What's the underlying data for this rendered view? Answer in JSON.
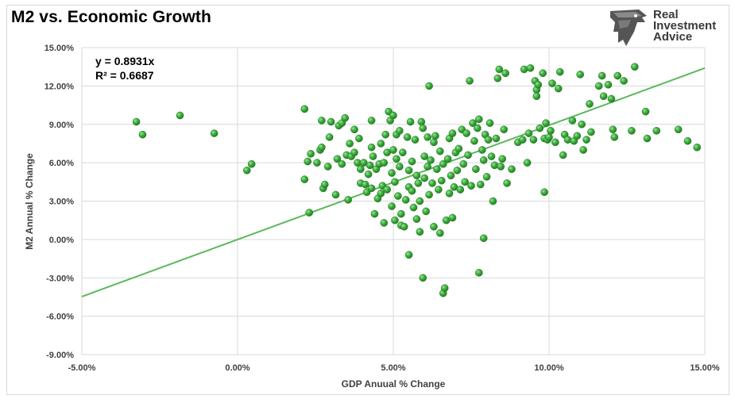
{
  "page_title": "M2 vs. Economic Growth",
  "logo": {
    "icon": "eagle-head-icon",
    "lines": [
      "Real",
      "Investment",
      "Advice"
    ]
  },
  "chart_data": {
    "type": "scatter",
    "title": "M2 vs. Economic Growth",
    "xlabel": "GDP Anuual % Change",
    "ylabel": "M2 Annual % Change",
    "xlim": [
      -5,
      15
    ],
    "ylim": [
      -9,
      15
    ],
    "xticks": [
      -5,
      0,
      5,
      10,
      15
    ],
    "yticks": [
      -9,
      -6,
      -3,
      0,
      3,
      6,
      9,
      12,
      15
    ],
    "xtick_labels": [
      "-5.00%",
      "0.00%",
      "5.00%",
      "10.00%",
      "15.00%"
    ],
    "ytick_labels": [
      "-9.00%",
      "-6.00%",
      "-3.00%",
      "0.00%",
      "3.00%",
      "6.00%",
      "9.00%",
      "12.00%",
      "15.00%"
    ],
    "grid": true,
    "trendline": {
      "slope": 0.8931,
      "intercept": 0,
      "equation": "y = 0.8931x",
      "r2": "R² = 0.6687",
      "color": "#5cb85c"
    },
    "marker_color": "#3aa53a",
    "points": [
      [
        -3.25,
        9.2
      ],
      [
        -3.05,
        8.2
      ],
      [
        -1.85,
        9.7
      ],
      [
        -0.75,
        8.3
      ],
      [
        0.3,
        5.4
      ],
      [
        0.45,
        5.9
      ],
      [
        2.15,
        10.2
      ],
      [
        2.15,
        4.7
      ],
      [
        2.25,
        6.1
      ],
      [
        2.3,
        2.1
      ],
      [
        2.35,
        6.7
      ],
      [
        2.55,
        6.0
      ],
      [
        2.65,
        7.0
      ],
      [
        2.7,
        9.3
      ],
      [
        2.7,
        7.2
      ],
      [
        2.75,
        4.0
      ],
      [
        2.8,
        4.3
      ],
      [
        2.9,
        5.7
      ],
      [
        2.95,
        8.0
      ],
      [
        3.0,
        9.2
      ],
      [
        3.15,
        3.5
      ],
      [
        3.2,
        6.3
      ],
      [
        3.25,
        8.9
      ],
      [
        3.35,
        9.1
      ],
      [
        3.35,
        5.9
      ],
      [
        3.45,
        9.5
      ],
      [
        3.5,
        6.6
      ],
      [
        3.55,
        3.1
      ],
      [
        3.6,
        7.5
      ],
      [
        3.65,
        6.5
      ],
      [
        3.75,
        8.6
      ],
      [
        3.75,
        6.8
      ],
      [
        3.85,
        6.0
      ],
      [
        3.9,
        7.9
      ],
      [
        3.95,
        5.5
      ],
      [
        3.95,
        4.4
      ],
      [
        4.05,
        6.0
      ],
      [
        4.1,
        4.3
      ],
      [
        4.15,
        3.7
      ],
      [
        4.2,
        5.1
      ],
      [
        4.25,
        5.8
      ],
      [
        4.3,
        9.3
      ],
      [
        4.3,
        7.2
      ],
      [
        4.3,
        4.0
      ],
      [
        4.35,
        6.5
      ],
      [
        4.4,
        2.0
      ],
      [
        4.45,
        5.5
      ],
      [
        4.5,
        3.2
      ],
      [
        4.55,
        5.9
      ],
      [
        4.6,
        3.6
      ],
      [
        4.6,
        7.5
      ],
      [
        4.65,
        4.2
      ],
      [
        4.7,
        6.0
      ],
      [
        4.7,
        1.3
      ],
      [
        4.75,
        8.2
      ],
      [
        4.8,
        6.8
      ],
      [
        4.8,
        3.9
      ],
      [
        4.85,
        10.0
      ],
      [
        4.9,
        9.3
      ],
      [
        4.95,
        2.6
      ],
      [
        4.95,
        5.2
      ],
      [
        5.0,
        9.7
      ],
      [
        5.0,
        7.0
      ],
      [
        5.05,
        1.5
      ],
      [
        5.05,
        4.5
      ],
      [
        5.1,
        6.3
      ],
      [
        5.1,
        8.2
      ],
      [
        5.15,
        3.4
      ],
      [
        5.2,
        8.5
      ],
      [
        5.2,
        5.7
      ],
      [
        5.25,
        1.1
      ],
      [
        5.25,
        2.0
      ],
      [
        5.3,
        6.8
      ],
      [
        5.35,
        1.0
      ],
      [
        5.4,
        3.1
      ],
      [
        5.45,
        8.0
      ],
      [
        5.5,
        4.1
      ],
      [
        5.5,
        5.4
      ],
      [
        5.5,
        -1.2
      ],
      [
        5.55,
        9.2
      ],
      [
        5.6,
        6.1
      ],
      [
        5.6,
        3.8
      ],
      [
        5.65,
        2.5
      ],
      [
        5.7,
        7.8
      ],
      [
        5.75,
        5.0
      ],
      [
        5.75,
        1.6
      ],
      [
        5.8,
        4.4
      ],
      [
        5.85,
        3.0
      ],
      [
        5.85,
        0.6
      ],
      [
        5.9,
        9.2
      ],
      [
        5.95,
        8.7
      ],
      [
        5.95,
        -3.0
      ],
      [
        6.0,
        6.5
      ],
      [
        6.0,
        4.8
      ],
      [
        6.05,
        2.2
      ],
      [
        6.1,
        8.0
      ],
      [
        6.1,
        5.7
      ],
      [
        6.15,
        12.0
      ],
      [
        6.15,
        3.5
      ],
      [
        6.2,
        6.2
      ],
      [
        6.25,
        4.4
      ],
      [
        6.3,
        7.6
      ],
      [
        6.3,
        1.0
      ],
      [
        6.35,
        8.1
      ],
      [
        6.4,
        5.5
      ],
      [
        6.45,
        3.9
      ],
      [
        6.5,
        0.5
      ],
      [
        6.5,
        6.9
      ],
      [
        6.55,
        4.6
      ],
      [
        6.6,
        -4.2
      ],
      [
        6.6,
        5.9
      ],
      [
        6.65,
        -3.8
      ],
      [
        6.7,
        1.5
      ],
      [
        6.75,
        6.3
      ],
      [
        6.8,
        7.9
      ],
      [
        6.8,
        3.6
      ],
      [
        6.85,
        5.0
      ],
      [
        6.9,
        1.7
      ],
      [
        6.9,
        8.3
      ],
      [
        6.95,
        4.1
      ],
      [
        7.0,
        6.8
      ],
      [
        7.05,
        5.4
      ],
      [
        7.1,
        7.1
      ],
      [
        7.15,
        3.9
      ],
      [
        7.2,
        8.6
      ],
      [
        7.25,
        5.9
      ],
      [
        7.3,
        4.5
      ],
      [
        7.35,
        8.3
      ],
      [
        7.4,
        6.6
      ],
      [
        7.45,
        12.4
      ],
      [
        7.5,
        4.2
      ],
      [
        7.55,
        9.1
      ],
      [
        7.6,
        7.7
      ],
      [
        7.65,
        5.5
      ],
      [
        7.7,
        8.7
      ],
      [
        7.75,
        9.4
      ],
      [
        7.75,
        -2.6
      ],
      [
        7.8,
        4.3
      ],
      [
        7.85,
        7.0
      ],
      [
        7.9,
        6.2
      ],
      [
        7.9,
        0.1
      ],
      [
        7.95,
        8.2
      ],
      [
        8.0,
        4.9
      ],
      [
        8.05,
        7.8
      ],
      [
        8.1,
        9.1
      ],
      [
        8.15,
        6.5
      ],
      [
        8.2,
        3.0
      ],
      [
        8.25,
        5.8
      ],
      [
        8.3,
        7.9
      ],
      [
        8.35,
        12.6
      ],
      [
        8.4,
        13.3
      ],
      [
        8.45,
        5.7
      ],
      [
        8.5,
        6.3
      ],
      [
        8.55,
        8.6
      ],
      [
        8.6,
        13.0
      ],
      [
        8.65,
        4.4
      ],
      [
        8.8,
        5.5
      ],
      [
        9.0,
        7.6
      ],
      [
        9.15,
        7.8
      ],
      [
        9.2,
        13.3
      ],
      [
        9.3,
        6.0
      ],
      [
        9.35,
        8.3
      ],
      [
        9.4,
        13.4
      ],
      [
        9.5,
        7.8
      ],
      [
        9.55,
        12.4
      ],
      [
        9.6,
        11.7
      ],
      [
        9.6,
        11.2
      ],
      [
        9.65,
        12.1
      ],
      [
        9.7,
        8.7
      ],
      [
        9.8,
        13.0
      ],
      [
        9.85,
        3.7
      ],
      [
        9.85,
        7.9
      ],
      [
        9.9,
        9.1
      ],
      [
        9.95,
        7.8
      ],
      [
        10.0,
        8.0
      ],
      [
        10.05,
        8.5
      ],
      [
        10.1,
        12.2
      ],
      [
        10.2,
        7.6
      ],
      [
        10.3,
        11.8
      ],
      [
        10.35,
        13.1
      ],
      [
        10.45,
        6.6
      ],
      [
        10.5,
        8.2
      ],
      [
        10.6,
        7.8
      ],
      [
        10.75,
        9.3
      ],
      [
        10.8,
        7.7
      ],
      [
        10.9,
        8.1
      ],
      [
        11.0,
        12.9
      ],
      [
        11.05,
        9.0
      ],
      [
        11.1,
        7.0
      ],
      [
        11.2,
        7.8
      ],
      [
        11.3,
        10.6
      ],
      [
        11.35,
        8.4
      ],
      [
        11.6,
        12.0
      ],
      [
        11.7,
        12.8
      ],
      [
        11.75,
        11.2
      ],
      [
        11.9,
        12.1
      ],
      [
        12.0,
        11.0
      ],
      [
        12.05,
        8.6
      ],
      [
        12.1,
        8.0
      ],
      [
        12.2,
        12.8
      ],
      [
        12.4,
        12.4
      ],
      [
        12.65,
        8.5
      ],
      [
        12.75,
        13.5
      ],
      [
        13.1,
        10.0
      ],
      [
        13.15,
        7.9
      ],
      [
        13.45,
        8.5
      ],
      [
        14.15,
        8.6
      ],
      [
        14.45,
        7.7
      ],
      [
        14.75,
        7.2
      ]
    ]
  }
}
